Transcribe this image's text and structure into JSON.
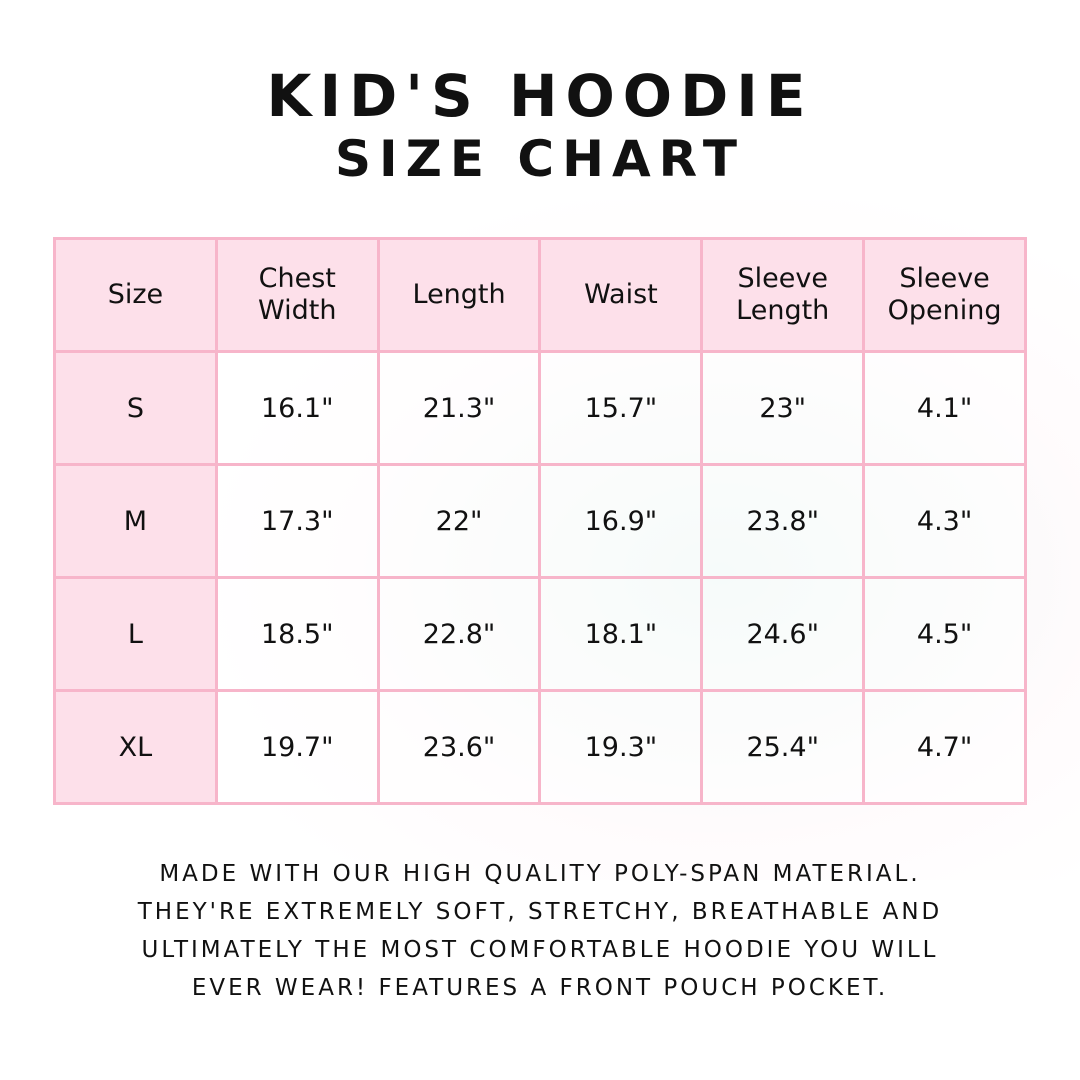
{
  "title": {
    "line1": "KID'S HOODIE",
    "line2": "SIZE CHART"
  },
  "table": {
    "headers": [
      "Size",
      "Chest Width",
      "Length",
      "Waist",
      "Sleeve Length",
      "Sleeve Opening"
    ],
    "rows": [
      [
        "S",
        "16.1\"",
        "21.3\"",
        "15.7\"",
        "23\"",
        "4.1\""
      ],
      [
        "M",
        "17.3\"",
        "22\"",
        "16.9\"",
        "23.8\"",
        "4.3\""
      ],
      [
        "L",
        "18.5\"",
        "22.8\"",
        "18.1\"",
        "24.6\"",
        "4.5\""
      ],
      [
        "XL",
        "19.7\"",
        "23.6\"",
        "19.3\"",
        "25.4\"",
        "4.7\""
      ]
    ]
  },
  "description": [
    "Made with our high quality poly-span material.",
    "They're extremely soft, stretchy, breathable and",
    "ultimately the most comfortable hoodie you will",
    "ever wear! Features a front pouch pocket."
  ],
  "colors": {
    "header_bg": "#fde0ea",
    "border": "#f7b5ca"
  }
}
